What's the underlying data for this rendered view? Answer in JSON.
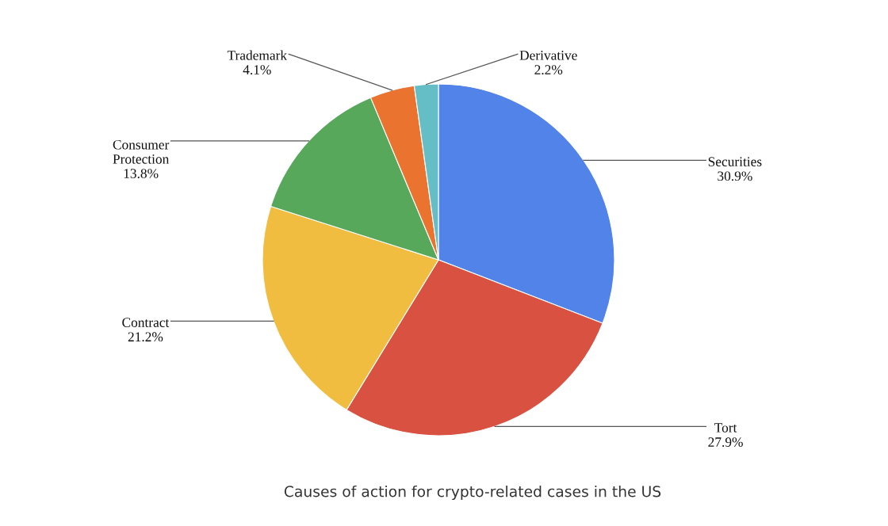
{
  "chart_data": {
    "type": "pie",
    "categories": [
      "Securities",
      "Tort",
      "Contract",
      "Consumer Protection",
      "Trademark",
      "Derivative"
    ],
    "values": [
      30.9,
      27.9,
      21.2,
      13.8,
      4.1,
      2.2
    ],
    "colors": [
      "#5283e8",
      "#d95140",
      "#f0bd41",
      "#58a85c",
      "#ea7330",
      "#65bec6"
    ],
    "value_labels": [
      "30.9%",
      "27.9%",
      "21.2%",
      "13.8%",
      "4.1%",
      "2.2%"
    ],
    "annotations": [
      "Causes of action for crypto-related cases in the US"
    ]
  }
}
